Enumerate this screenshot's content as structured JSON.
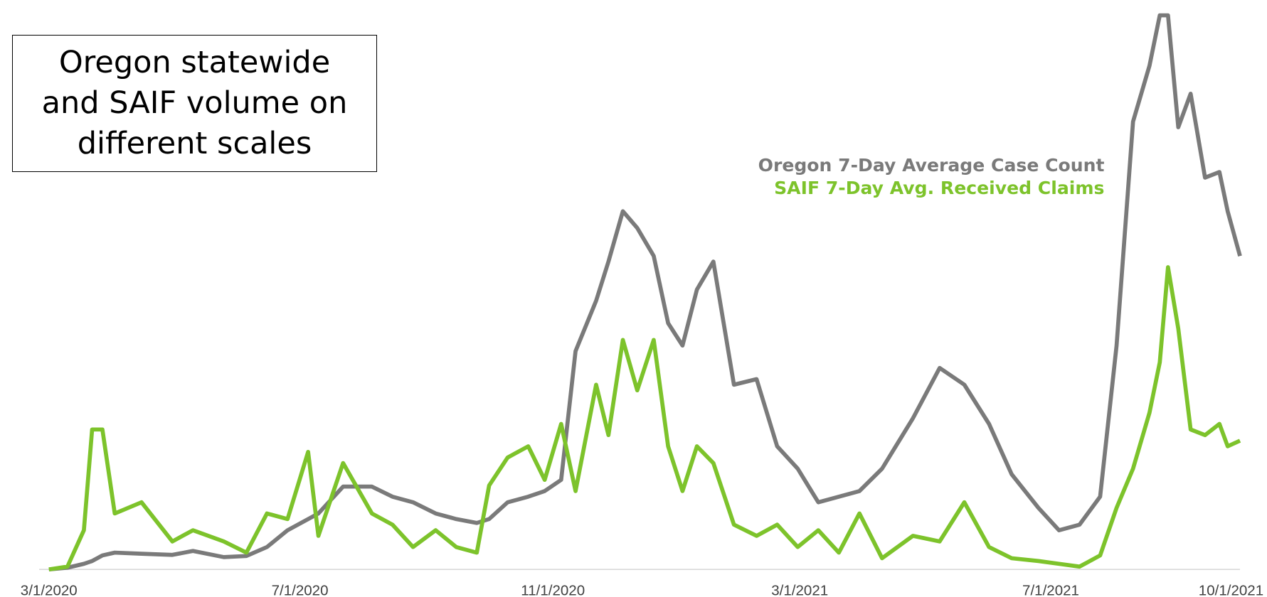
{
  "chart_data": {
    "type": "line",
    "title": "Oregon statewide and SAIF volume on different scales",
    "x": [
      "3/1/2020",
      "3/10/2020",
      "3/18/2020",
      "3/22/2020",
      "3/27/2020",
      "4/2/2020",
      "4/15/2020",
      "4/30/2020",
      "5/10/2020",
      "5/25/2020",
      "6/5/2020",
      "6/15/2020",
      "6/25/2020",
      "7/5/2020",
      "7/10/2020",
      "7/22/2020",
      "8/5/2020",
      "8/15/2020",
      "8/25/2020",
      "9/5/2020",
      "9/15/2020",
      "9/25/2020",
      "10/1/2020",
      "10/10/2020",
      "10/20/2020",
      "10/28/2020",
      "11/5/2020",
      "11/12/2020",
      "11/22/2020",
      "11/28/2020",
      "12/5/2020",
      "12/12/2020",
      "12/20/2020",
      "12/27/2020",
      "1/3/2021",
      "1/10/2021",
      "1/18/2021",
      "1/28/2021",
      "2/8/2021",
      "2/18/2021",
      "2/28/2021",
      "3/10/2021",
      "3/20/2021",
      "3/30/2021",
      "4/10/2021",
      "4/25/2021",
      "5/8/2021",
      "5/20/2021",
      "6/1/2021",
      "6/12/2021",
      "6/25/2021",
      "7/5/2021",
      "7/15/2021",
      "7/25/2021",
      "8/2/2021",
      "8/10/2021",
      "8/18/2021",
      "8/23/2021",
      "8/27/2021",
      "9/1/2021",
      "9/7/2021",
      "9/14/2021",
      "9/21/2021",
      "9/25/2021",
      "10/1/2021"
    ],
    "series": [
      {
        "name": "Oregon 7-Day Average Case Count",
        "color": "#7a7a7a",
        "values": [
          0,
          0.3,
          1,
          1.5,
          2.5,
          3,
          2.8,
          2.6,
          3.3,
          2.2,
          2.4,
          4,
          7,
          9,
          10,
          14.8,
          14.8,
          13,
          12,
          10,
          9,
          8.3,
          9,
          12,
          13,
          14,
          16,
          39,
          48,
          55,
          64,
          61,
          56,
          44,
          40,
          50,
          55,
          33,
          34,
          22,
          18,
          12,
          13,
          14,
          18,
          27,
          36,
          33,
          26,
          17,
          11,
          7,
          8,
          13,
          40,
          80,
          90,
          99,
          99,
          79,
          85,
          70,
          71,
          64,
          56
        ]
      },
      {
        "name": "SAIF 7-Day Avg. Received Claims",
        "color": "#7dc32b",
        "values": [
          0,
          0.5,
          7,
          25,
          25,
          10,
          12,
          5,
          7,
          5,
          3,
          10,
          9,
          21,
          6,
          19,
          10,
          8,
          4,
          7,
          4,
          3,
          15,
          20,
          22,
          16,
          26,
          14,
          33,
          24,
          41,
          32,
          41,
          22,
          14,
          22,
          19,
          8,
          6,
          8,
          4,
          7,
          3,
          10,
          2,
          6,
          5,
          12,
          4,
          2,
          1.5,
          1,
          0.5,
          2.5,
          11,
          18,
          28,
          37,
          54,
          43,
          25,
          24,
          26,
          22,
          23
        ]
      }
    ],
    "xlim": [
      "3/1/2020",
      "10/1/2021"
    ],
    "xticks": [
      "3/1/2020",
      "7/1/2020",
      "11/1/2020",
      "3/1/2021",
      "7/1/2021",
      "10/1/2021"
    ],
    "ylim": [
      0,
      100
    ]
  }
}
